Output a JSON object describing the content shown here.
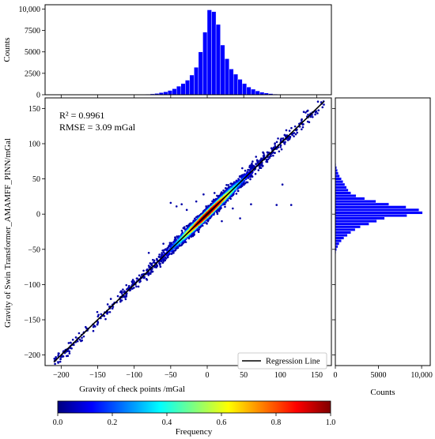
{
  "chart_data": [
    {
      "type": "bar",
      "panel": "top-histogram",
      "ylabel": "Counts",
      "yticks": [
        0,
        2500,
        5000,
        7500,
        10000
      ],
      "ytick_labels": [
        "0",
        "2500",
        "5000",
        "7500",
        "10,000"
      ],
      "ylim": [
        0,
        10500
      ],
      "xlim": [
        -222,
        170
      ],
      "bin_width": 6,
      "bin_starts": [
        -96,
        -90,
        -84,
        -78,
        -72,
        -66,
        -60,
        -54,
        -48,
        -42,
        -36,
        -30,
        -24,
        -18,
        -12,
        -6,
        0,
        6,
        12,
        18,
        24,
        30,
        36,
        42,
        48,
        54,
        60,
        66,
        72,
        78,
        84,
        90,
        96,
        102,
        108
      ],
      "values": [
        20,
        40,
        60,
        100,
        150,
        250,
        350,
        500,
        700,
        1000,
        1300,
        1700,
        2300,
        3200,
        5000,
        7300,
        9900,
        9700,
        8200,
        5800,
        4200,
        3000,
        2400,
        1800,
        1300,
        900,
        650,
        450,
        300,
        200,
        130,
        80,
        50,
        30,
        20
      ],
      "color": "#0000ff"
    },
    {
      "type": "bar",
      "orientation": "horizontal",
      "panel": "right-histogram",
      "xlabel": "Counts",
      "xticks": [
        0,
        5000,
        10000
      ],
      "xtick_labels": [
        "0",
        "5000",
        "10,000"
      ],
      "xlim": [
        0,
        11000
      ],
      "ylim": [
        -215,
        165
      ],
      "bin_height": 4,
      "bin_starts": [
        -56,
        -52,
        -48,
        -44,
        -40,
        -36,
        -32,
        -28,
        -24,
        -20,
        -16,
        -12,
        -8,
        -4,
        0,
        4,
        8,
        12,
        16,
        20,
        24,
        28,
        32,
        36,
        40,
        44,
        48,
        52,
        56,
        60,
        64,
        68
      ],
      "values": [
        80,
        150,
        300,
        450,
        700,
        1000,
        1400,
        1800,
        2300,
        2900,
        3900,
        4800,
        5700,
        8300,
        10100,
        9700,
        8200,
        6200,
        4700,
        3400,
        2400,
        1800,
        1500,
        1300,
        1100,
        900,
        700,
        500,
        350,
        250,
        150,
        80
      ],
      "color": "#0000ff"
    },
    {
      "type": "scatter",
      "panel": "main-scatter",
      "title": "",
      "xlabel": "Gravity of check points /mGal",
      "ylabel": "Gravity of Swin Transformer_AMAMFF_PINN/mGal",
      "xticks": [
        -200,
        -150,
        -100,
        -50,
        0,
        50,
        100,
        150
      ],
      "yticks": [
        -200,
        -150,
        -100,
        -50,
        0,
        50,
        100,
        150
      ],
      "xlim": [
        -222,
        170
      ],
      "ylim": [
        -215,
        165
      ],
      "annotation_r2": "R² = 0.9961",
      "annotation_rmse": "RMSE = 3.09 mGal",
      "regression_line": {
        "label": "Regression Line",
        "slope": 1.0,
        "intercept": 0.0,
        "x_range": [
          -210,
          160
        ],
        "color": "#000000"
      },
      "legend_placement": "bottom-right",
      "density_colormap": "jet",
      "point_spread_sd": 4.5,
      "notable_outliers": [
        [
          -50,
          16
        ],
        [
          -42,
          11
        ],
        [
          -35,
          14
        ],
        [
          -28,
          6
        ],
        [
          -20,
          -25
        ],
        [
          -15,
          18
        ],
        [
          -8,
          -12
        ],
        [
          10,
          30
        ],
        [
          25,
          22
        ],
        [
          35,
          8
        ],
        [
          45,
          -6
        ],
        [
          60,
          14
        ],
        [
          95,
          13
        ],
        [
          103,
          42
        ],
        [
          115,
          13
        ],
        [
          -60,
          -42
        ],
        [
          -80,
          -55
        ],
        [
          -5,
          28
        ],
        [
          20,
          -10
        ],
        [
          55,
          60
        ]
      ],
      "grid": false
    },
    {
      "type": "colorbar",
      "label": "Frequency",
      "ticks": [
        0.0,
        0.2,
        0.4,
        0.6,
        0.8,
        1.0
      ],
      "tick_labels": [
        "0.0",
        "0.2",
        "0.4",
        "0.6",
        "0.8",
        "1.0"
      ],
      "colormap": "jet",
      "colormap_stops": [
        "#00007f",
        "#0000ff",
        "#007fff",
        "#00ffff",
        "#7fff7f",
        "#ffff00",
        "#ff7f00",
        "#ff0000",
        "#7f0000"
      ]
    }
  ]
}
